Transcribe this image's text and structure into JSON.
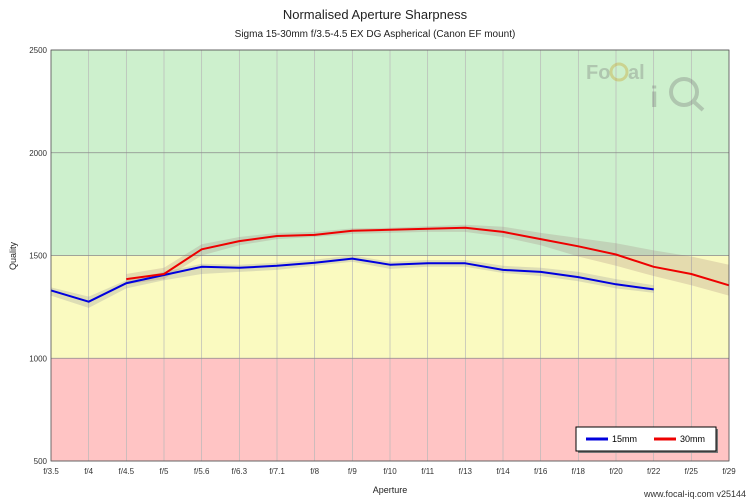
{
  "chart_data": {
    "type": "line",
    "title": "Normalised Aperture Sharpness",
    "subtitle": "Sigma 15-30mm f/3.5-4.5 EX DG Aspherical (Canon EF mount)",
    "xlabel": "Aperture",
    "ylabel": "Quality",
    "categories": [
      "f/3.5",
      "f/4",
      "f/4.5",
      "f/5",
      "f/5.6",
      "f/6.3",
      "f/7.1",
      "f/8",
      "f/9",
      "f/10",
      "f/11",
      "f/13",
      "f/14",
      "f/16",
      "f/18",
      "f/20",
      "f/22",
      "f/25",
      "f/29"
    ],
    "ylim": [
      500,
      2500
    ],
    "yticks": [
      500,
      1000,
      1500,
      2000,
      2500
    ],
    "grid": true,
    "legend_position": "bottom-right",
    "bands": [
      {
        "from": 1500,
        "to": 2500,
        "color": "#cdf0cd"
      },
      {
        "from": 1000,
        "to": 1500,
        "color": "#fafac0"
      },
      {
        "from": 500,
        "to": 1000,
        "color": "#ffc4c4"
      }
    ],
    "series": [
      {
        "name": "15mm",
        "color": "#0000dd",
        "values": [
          1330,
          1275,
          1365,
          1405,
          1445,
          1440,
          1450,
          1465,
          1485,
          1455,
          1462,
          1462,
          1430,
          1420,
          1395,
          1360,
          1335,
          null,
          null
        ],
        "band_lower": [
          1305,
          1245,
          1340,
          1380,
          1410,
          1420,
          1430,
          1450,
          1470,
          1435,
          1445,
          1445,
          1415,
          1400,
          1375,
          1340,
          1318,
          null,
          null
        ],
        "band_upper": [
          1345,
          1300,
          1380,
          1420,
          1460,
          1455,
          1465,
          1480,
          1500,
          1470,
          1478,
          1478,
          1450,
          1440,
          1420,
          1385,
          1355,
          null,
          null
        ]
      },
      {
        "name": "30mm",
        "color": "#ee0000",
        "values": [
          null,
          null,
          1385,
          1410,
          1530,
          1570,
          1595,
          1600,
          1620,
          1625,
          1630,
          1635,
          1615,
          1580,
          1545,
          1505,
          1445,
          1410,
          1355
        ],
        "band_lower": [
          null,
          null,
          1360,
          1385,
          1500,
          1550,
          1580,
          1590,
          1605,
          1610,
          1615,
          1615,
          1590,
          1550,
          1495,
          1450,
          1400,
          1355,
          1305
        ],
        "band_upper": [
          null,
          null,
          1410,
          1440,
          1555,
          1590,
          1610,
          1615,
          1632,
          1635,
          1642,
          1650,
          1640,
          1610,
          1585,
          1560,
          1525,
          1495,
          1455
        ]
      }
    ]
  },
  "branding": {
    "logo_top": "FoCal",
    "logo_bottom": "iQ",
    "footer": "www.focal-iq.com  v25144"
  }
}
